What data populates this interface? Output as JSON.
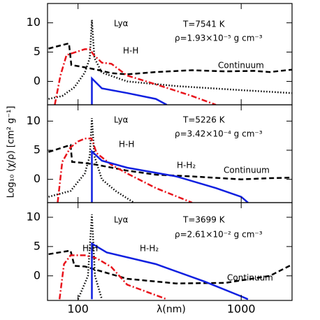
{
  "chart_data": [
    {
      "type": "line",
      "xscale": "log",
      "xlim": [
        65,
        2050
      ],
      "ylim": [
        -4,
        13.3
      ],
      "xticks": [
        100,
        1000
      ],
      "yticks": [
        0,
        5,
        10
      ],
      "annotations": [
        "Lyα",
        "H-H",
        "Continuum",
        "T=7541 K",
        "ρ=1.93×10⁻⁵ g cm⁻³"
      ],
      "series": [
        {
          "color": "#000000",
          "style": "dashed",
          "x": [
            66,
            88,
            91,
            110,
            130,
            160,
            200,
            300,
            500,
            800,
            1200,
            1500,
            2040
          ],
          "values": [
            5.6,
            6.5,
            2.8,
            2.4,
            2.0,
            1.4,
            1.2,
            1.6,
            1.9,
            1.7,
            1.8,
            1.6,
            2.0
          ]
        },
        {
          "color": "#000000",
          "style": "dotted",
          "x": [
            66,
            80,
            95,
            110,
            118,
            121.6,
            126,
            140,
            200,
            400,
            1000,
            2040
          ],
          "values": [
            -3,
            -2.5,
            -1,
            1.5,
            4,
            10.5,
            4,
            1.5,
            0,
            -0.8,
            -1.5,
            -2
          ]
        },
        {
          "color": "#e8141c",
          "style": "dashdot",
          "x": [
            72,
            78,
            85,
            110,
            118,
            125,
            140,
            160,
            200,
            300,
            500,
            700
          ],
          "values": [
            -4,
            1,
            4.5,
            5.5,
            5.5,
            4.5,
            3.2,
            3,
            1,
            -0.5,
            -2.5,
            -4
          ]
        },
        {
          "color": "#1020e0",
          "style": "solid",
          "x": [
            121.6,
            121.6,
            140,
            200,
            300,
            350
          ],
          "values": [
            -4,
            0.5,
            -1.2,
            -2,
            -3,
            -4
          ]
        }
      ]
    },
    {
      "type": "line",
      "xscale": "log",
      "xlim": [
        65,
        2050
      ],
      "ylim": [
        -4,
        12.8
      ],
      "xticks": [
        100,
        1000
      ],
      "yticks": [
        0,
        5,
        10
      ],
      "ylabel": "Log₁₀ (χ/ρ) [cm² g⁻¹]",
      "annotations": [
        "Lyα",
        "H-H",
        "H-H₂",
        "Continuum",
        "T=5226 K",
        "ρ=3.42×10⁻⁴ g cm⁻³"
      ],
      "series": [
        {
          "color": "#000000",
          "style": "dashed",
          "x": [
            66,
            90,
            92,
            110,
            130,
            200,
            300,
            500,
            1000,
            1500,
            2040
          ],
          "values": [
            4.7,
            5.9,
            3,
            2.8,
            2.5,
            1.5,
            0.8,
            0.5,
            0,
            0.2,
            0.3
          ]
        },
        {
          "color": "#000000",
          "style": "dotted",
          "x": [
            66,
            90,
            110,
            118,
            121.6,
            126,
            140,
            170,
            220
          ],
          "values": [
            -3,
            -2,
            1,
            4,
            10.5,
            4,
            0,
            -2,
            -4
          ]
        },
        {
          "color": "#e8141c",
          "style": "dashdot",
          "x": [
            75,
            80,
            90,
            100,
            110,
            121,
            130,
            160,
            200,
            300,
            500
          ],
          "values": [
            -4,
            3,
            5.5,
            6.5,
            7,
            7,
            4.5,
            2.5,
            1,
            -1.5,
            -4
          ]
        },
        {
          "color": "#1020e0",
          "style": "solid",
          "x": [
            121.6,
            121.6,
            140,
            200,
            400,
            700,
            1000,
            1100
          ],
          "values": [
            -4,
            4.8,
            3.2,
            2,
            0.5,
            -1.5,
            -3,
            -4
          ]
        }
      ]
    },
    {
      "type": "line",
      "xscale": "log",
      "xlim": [
        65,
        2050
      ],
      "ylim": [
        -4.2,
        12.5
      ],
      "xticks": [
        100,
        1000
      ],
      "yticks": [
        0,
        5,
        10
      ],
      "xlabel": "λ(nm)",
      "annotations": [
        "Lyα",
        "H-H",
        "H-H₂",
        "Continuum",
        "T=3699 K",
        "ρ=2.61×10⁻² g cm⁻³"
      ],
      "series": [
        {
          "color": "#000000",
          "style": "dashed",
          "x": [
            66,
            90,
            95,
            110,
            130,
            200,
            400,
            800,
            1500,
            2040
          ],
          "values": [
            3.7,
            4.3,
            1.7,
            1.6,
            1,
            -0.5,
            -1.3,
            -1.2,
            0,
            1.9
          ]
        },
        {
          "color": "#000000",
          "style": "dotted",
          "x": [
            100,
            115,
            121.6,
            127,
            140
          ],
          "values": [
            -4,
            0,
            10.5,
            0,
            -4
          ]
        },
        {
          "color": "#e8141c",
          "style": "dashdot",
          "x": [
            77,
            82,
            90,
            110,
            130,
            160,
            200,
            250,
            350
          ],
          "values": [
            -4,
            2,
            3.5,
            3.5,
            3,
            1.5,
            -1.5,
            -2.5,
            -4
          ]
        },
        {
          "color": "#1020e0",
          "style": "solid",
          "x": [
            121.6,
            121.6,
            150,
            300,
            600,
            1000,
            1100
          ],
          "values": [
            -4,
            5.5,
            4,
            2,
            -1,
            -3.5,
            -4
          ]
        }
      ]
    }
  ]
}
